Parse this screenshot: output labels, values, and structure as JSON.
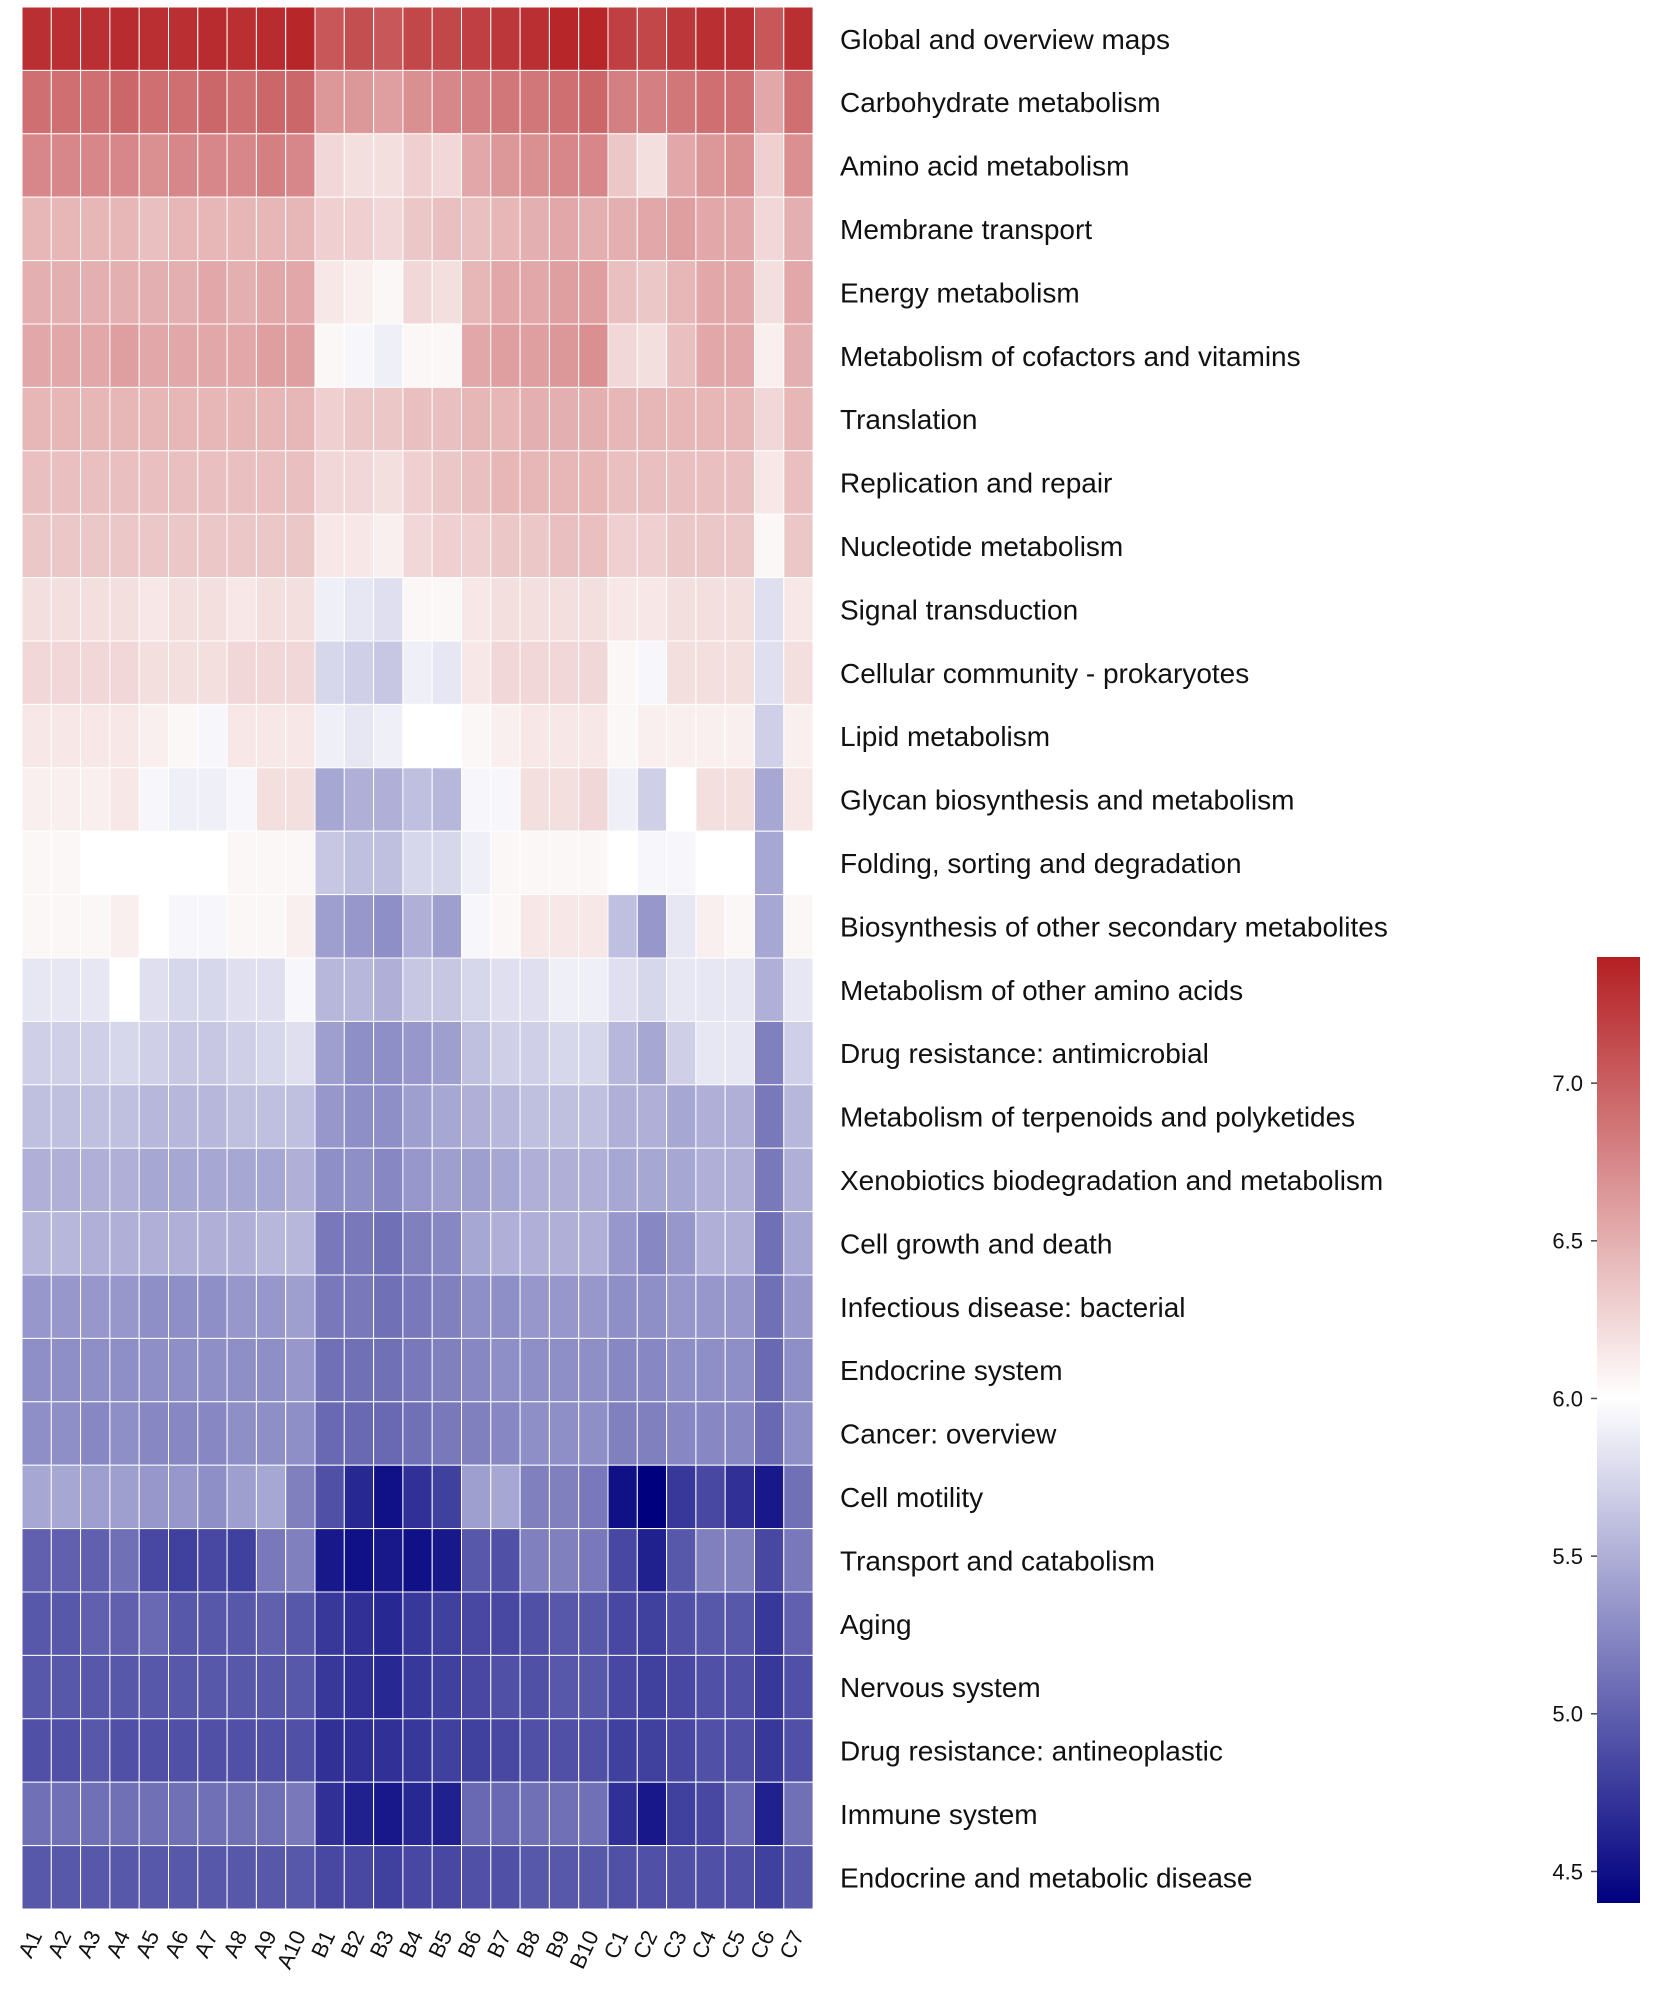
{
  "chart_data": {
    "type": "heatmap",
    "title": "",
    "xlabel": "",
    "ylabel": "",
    "columns": [
      "A1",
      "A2",
      "A3",
      "A4",
      "A5",
      "A6",
      "A7",
      "A8",
      "A9",
      "A10",
      "B1",
      "B2",
      "B3",
      "B4",
      "B5",
      "B6",
      "B7",
      "B8",
      "B9",
      "B10",
      "C1",
      "C2",
      "C3",
      "C4",
      "C5",
      "C6",
      "C7"
    ],
    "rows": [
      "Global and overview maps",
      "Carbohydrate metabolism",
      "Amino acid metabolism",
      "Membrane transport",
      "Energy metabolism",
      "Metabolism of cofactors and vitamins",
      "Translation",
      "Replication and repair",
      "Nucleotide metabolism",
      "Signal transduction",
      "Cellular community - prokaryotes",
      "Lipid metabolism",
      "Glycan biosynthesis and metabolism",
      "Folding, sorting and degradation",
      "Biosynthesis of other secondary metabolites",
      "Metabolism of other amino acids",
      "Drug resistance: antimicrobial",
      "Metabolism of terpenoids and polyketides",
      "Xenobiotics biodegradation and metabolism",
      "Cell growth and death",
      "Infectious disease: bacterial",
      "Endocrine system",
      "Cancer: overview",
      "Cell motility",
      "Transport and catabolism",
      "Aging",
      "Nervous system",
      "Drug resistance: antineoplastic",
      "Immune system",
      "Endocrine and metabolic disease"
    ],
    "values": [
      [
        7.3,
        7.3,
        7.3,
        7.32,
        7.3,
        7.3,
        7.32,
        7.3,
        7.32,
        7.35,
        7.05,
        7.1,
        7.05,
        7.15,
        7.15,
        7.2,
        7.25,
        7.3,
        7.35,
        7.35,
        7.2,
        7.15,
        7.25,
        7.3,
        7.3,
        7.05,
        7.3
      ],
      [
        6.9,
        6.9,
        6.9,
        6.95,
        6.9,
        6.9,
        6.95,
        6.9,
        6.95,
        6.95,
        6.65,
        6.65,
        6.6,
        6.7,
        6.75,
        6.8,
        6.85,
        6.85,
        6.9,
        6.95,
        6.8,
        6.8,
        6.85,
        6.9,
        6.9,
        6.55,
        6.9
      ],
      [
        6.75,
        6.75,
        6.75,
        6.75,
        6.7,
        6.75,
        6.75,
        6.75,
        6.8,
        6.75,
        6.25,
        6.2,
        6.2,
        6.3,
        6.25,
        6.55,
        6.65,
        6.7,
        6.75,
        6.75,
        6.35,
        6.2,
        6.55,
        6.65,
        6.7,
        6.3,
        6.7
      ],
      [
        6.45,
        6.45,
        6.45,
        6.45,
        6.4,
        6.45,
        6.45,
        6.45,
        6.45,
        6.45,
        6.3,
        6.3,
        6.25,
        6.35,
        6.4,
        6.4,
        6.45,
        6.5,
        6.55,
        6.5,
        6.5,
        6.55,
        6.6,
        6.55,
        6.55,
        6.25,
        6.5
      ],
      [
        6.5,
        6.5,
        6.5,
        6.5,
        6.5,
        6.5,
        6.55,
        6.5,
        6.55,
        6.55,
        6.15,
        6.1,
        6.05,
        6.25,
        6.2,
        6.45,
        6.55,
        6.55,
        6.6,
        6.6,
        6.4,
        6.35,
        6.45,
        6.55,
        6.55,
        6.2,
        6.55
      ],
      [
        6.55,
        6.55,
        6.55,
        6.6,
        6.55,
        6.55,
        6.55,
        6.55,
        6.6,
        6.6,
        6.05,
        5.95,
        5.9,
        6.05,
        6.05,
        6.55,
        6.6,
        6.6,
        6.65,
        6.7,
        6.25,
        6.2,
        6.4,
        6.55,
        6.55,
        6.1,
        6.5
      ],
      [
        6.45,
        6.45,
        6.45,
        6.45,
        6.45,
        6.45,
        6.45,
        6.45,
        6.45,
        6.45,
        6.3,
        6.35,
        6.35,
        6.4,
        6.4,
        6.45,
        6.45,
        6.5,
        6.5,
        6.5,
        6.45,
        6.45,
        6.45,
        6.45,
        6.45,
        6.25,
        6.45
      ],
      [
        6.4,
        6.4,
        6.4,
        6.4,
        6.4,
        6.4,
        6.4,
        6.4,
        6.4,
        6.4,
        6.25,
        6.25,
        6.2,
        6.3,
        6.35,
        6.4,
        6.45,
        6.45,
        6.45,
        6.45,
        6.4,
        6.4,
        6.4,
        6.4,
        6.4,
        6.15,
        6.4
      ],
      [
        6.35,
        6.35,
        6.35,
        6.35,
        6.35,
        6.35,
        6.35,
        6.35,
        6.35,
        6.35,
        6.15,
        6.15,
        6.1,
        6.25,
        6.3,
        6.3,
        6.35,
        6.35,
        6.4,
        6.4,
        6.3,
        6.3,
        6.35,
        6.35,
        6.35,
        6.05,
        6.35
      ],
      [
        6.2,
        6.2,
        6.2,
        6.2,
        6.15,
        6.2,
        6.2,
        6.15,
        6.2,
        6.2,
        5.9,
        5.85,
        5.8,
        6.05,
        6.05,
        6.15,
        6.2,
        6.2,
        6.2,
        6.2,
        6.15,
        6.15,
        6.2,
        6.2,
        6.2,
        5.8,
        6.15
      ],
      [
        6.25,
        6.25,
        6.25,
        6.25,
        6.2,
        6.2,
        6.2,
        6.25,
        6.25,
        6.25,
        5.75,
        5.7,
        5.65,
        5.9,
        5.85,
        6.15,
        6.25,
        6.25,
        6.25,
        6.25,
        6.05,
        5.95,
        6.2,
        6.2,
        6.2,
        5.8,
        6.2
      ],
      [
        6.15,
        6.15,
        6.15,
        6.15,
        6.1,
        6.05,
        5.95,
        6.15,
        6.15,
        6.15,
        5.9,
        5.85,
        5.9,
        6.0,
        6.0,
        6.05,
        6.1,
        6.15,
        6.15,
        6.15,
        6.05,
        6.1,
        6.1,
        6.1,
        6.1,
        5.7,
        6.1
      ],
      [
        6.1,
        6.1,
        6.1,
        6.15,
        5.95,
        5.9,
        5.9,
        5.95,
        6.2,
        6.2,
        5.45,
        5.5,
        5.5,
        5.6,
        5.55,
        5.95,
        5.95,
        6.2,
        6.2,
        6.25,
        5.9,
        5.7,
        6.0,
        6.2,
        6.2,
        5.45,
        6.15
      ],
      [
        6.05,
        6.05,
        6.0,
        6.0,
        6.0,
        6.0,
        6.0,
        6.05,
        6.05,
        6.05,
        5.65,
        5.6,
        5.6,
        5.75,
        5.75,
        5.9,
        6.05,
        6.05,
        6.05,
        6.05,
        6.0,
        5.95,
        5.95,
        6.0,
        6.0,
        5.45,
        6.0
      ],
      [
        6.05,
        6.05,
        6.05,
        6.1,
        6.0,
        5.95,
        5.95,
        6.05,
        6.05,
        6.1,
        5.4,
        5.35,
        5.3,
        5.5,
        5.4,
        5.95,
        6.05,
        6.15,
        6.15,
        6.15,
        5.6,
        5.35,
        5.85,
        6.1,
        6.05,
        5.45,
        6.05
      ],
      [
        5.85,
        5.85,
        5.85,
        6.0,
        5.8,
        5.75,
        5.75,
        5.8,
        5.8,
        5.95,
        5.55,
        5.55,
        5.5,
        5.65,
        5.65,
        5.75,
        5.8,
        5.8,
        5.9,
        5.9,
        5.8,
        5.75,
        5.85,
        5.85,
        5.85,
        5.5,
        5.85
      ],
      [
        5.7,
        5.7,
        5.7,
        5.75,
        5.7,
        5.65,
        5.65,
        5.7,
        5.75,
        5.8,
        5.4,
        5.3,
        5.3,
        5.35,
        5.4,
        5.6,
        5.7,
        5.7,
        5.75,
        5.75,
        5.55,
        5.45,
        5.7,
        5.85,
        5.85,
        5.2,
        5.7
      ],
      [
        5.6,
        5.6,
        5.6,
        5.6,
        5.55,
        5.55,
        5.55,
        5.6,
        5.6,
        5.6,
        5.35,
        5.3,
        5.3,
        5.4,
        5.45,
        5.5,
        5.55,
        5.6,
        5.6,
        5.6,
        5.5,
        5.5,
        5.45,
        5.5,
        5.5,
        5.15,
        5.55
      ],
      [
        5.5,
        5.5,
        5.5,
        5.5,
        5.45,
        5.45,
        5.45,
        5.45,
        5.45,
        5.5,
        5.3,
        5.3,
        5.25,
        5.35,
        5.4,
        5.4,
        5.45,
        5.5,
        5.5,
        5.5,
        5.45,
        5.45,
        5.45,
        5.5,
        5.5,
        5.15,
        5.5
      ],
      [
        5.55,
        5.55,
        5.5,
        5.5,
        5.5,
        5.5,
        5.5,
        5.5,
        5.55,
        5.55,
        5.15,
        5.15,
        5.1,
        5.2,
        5.25,
        5.45,
        5.5,
        5.5,
        5.5,
        5.5,
        5.35,
        5.25,
        5.35,
        5.5,
        5.5,
        5.1,
        5.45
      ],
      [
        5.35,
        5.35,
        5.35,
        5.35,
        5.3,
        5.3,
        5.3,
        5.35,
        5.35,
        5.4,
        5.15,
        5.15,
        5.1,
        5.15,
        5.2,
        5.3,
        5.3,
        5.35,
        5.35,
        5.35,
        5.3,
        5.3,
        5.35,
        5.35,
        5.35,
        5.1,
        5.35
      ],
      [
        5.3,
        5.3,
        5.3,
        5.3,
        5.3,
        5.3,
        5.3,
        5.3,
        5.3,
        5.35,
        5.1,
        5.1,
        5.1,
        5.15,
        5.2,
        5.25,
        5.3,
        5.3,
        5.3,
        5.3,
        5.25,
        5.25,
        5.3,
        5.3,
        5.3,
        5.05,
        5.3
      ],
      [
        5.3,
        5.3,
        5.25,
        5.3,
        5.25,
        5.25,
        5.25,
        5.3,
        5.3,
        5.3,
        5.05,
        5.05,
        5.05,
        5.1,
        5.15,
        5.2,
        5.25,
        5.3,
        5.3,
        5.3,
        5.2,
        5.2,
        5.25,
        5.25,
        5.25,
        5.05,
        5.3
      ],
      [
        5.45,
        5.45,
        5.4,
        5.4,
        5.35,
        5.35,
        5.3,
        5.4,
        5.45,
        5.2,
        4.9,
        4.65,
        4.5,
        4.7,
        4.8,
        5.4,
        5.45,
        5.2,
        5.2,
        5.15,
        4.5,
        4.4,
        4.75,
        4.85,
        4.7,
        4.55,
        5.1
      ],
      [
        5.0,
        5.0,
        5.0,
        5.1,
        4.85,
        4.8,
        4.85,
        4.8,
        5.15,
        5.2,
        4.55,
        4.5,
        4.55,
        4.5,
        4.55,
        4.95,
        4.9,
        5.2,
        5.2,
        5.15,
        4.85,
        4.6,
        4.95,
        5.2,
        5.2,
        4.85,
        5.15
      ],
      [
        4.95,
        4.95,
        5.0,
        5.0,
        5.05,
        4.95,
        4.95,
        4.95,
        5.0,
        4.95,
        4.75,
        4.7,
        4.65,
        4.75,
        4.8,
        4.85,
        4.85,
        4.9,
        4.95,
        4.95,
        4.85,
        4.8,
        4.9,
        4.95,
        4.95,
        4.75,
        5.0
      ],
      [
        4.95,
        4.95,
        4.95,
        4.95,
        4.95,
        4.95,
        4.95,
        4.95,
        4.95,
        4.95,
        4.75,
        4.7,
        4.65,
        4.75,
        4.8,
        4.85,
        4.9,
        4.9,
        4.95,
        4.95,
        4.85,
        4.8,
        4.85,
        4.9,
        4.9,
        4.75,
        4.9
      ],
      [
        4.9,
        4.9,
        4.95,
        4.9,
        4.9,
        4.9,
        4.9,
        4.9,
        4.9,
        4.9,
        4.7,
        4.7,
        4.7,
        4.75,
        4.8,
        4.8,
        4.85,
        4.9,
        4.9,
        4.9,
        4.8,
        4.8,
        4.85,
        4.9,
        4.9,
        4.75,
        4.9
      ],
      [
        5.1,
        5.1,
        5.1,
        5.1,
        5.1,
        5.1,
        5.1,
        5.1,
        5.1,
        5.15,
        4.7,
        4.6,
        4.55,
        4.65,
        4.6,
        5.05,
        5.05,
        5.1,
        5.1,
        5.1,
        4.7,
        4.55,
        4.8,
        4.85,
        5.05,
        4.6,
        5.1
      ],
      [
        4.95,
        4.95,
        4.95,
        4.95,
        4.95,
        4.95,
        4.95,
        4.95,
        4.95,
        4.95,
        4.85,
        4.85,
        4.8,
        4.85,
        4.85,
        4.9,
        4.9,
        4.95,
        4.95,
        4.95,
        4.9,
        4.9,
        4.9,
        4.9,
        4.9,
        4.8,
        4.95
      ]
    ],
    "colorbar": {
      "min": 4.4,
      "max": 7.4,
      "ticks": [
        4.5,
        5.0,
        5.5,
        6.0,
        6.5,
        7.0
      ],
      "tick_labels": [
        "4.5",
        "5.0",
        "5.5",
        "6.0",
        "6.5",
        "7.0"
      ],
      "colors": [
        "#00007f",
        "#ffffff",
        "#b41f22"
      ],
      "placement": "right"
    }
  }
}
